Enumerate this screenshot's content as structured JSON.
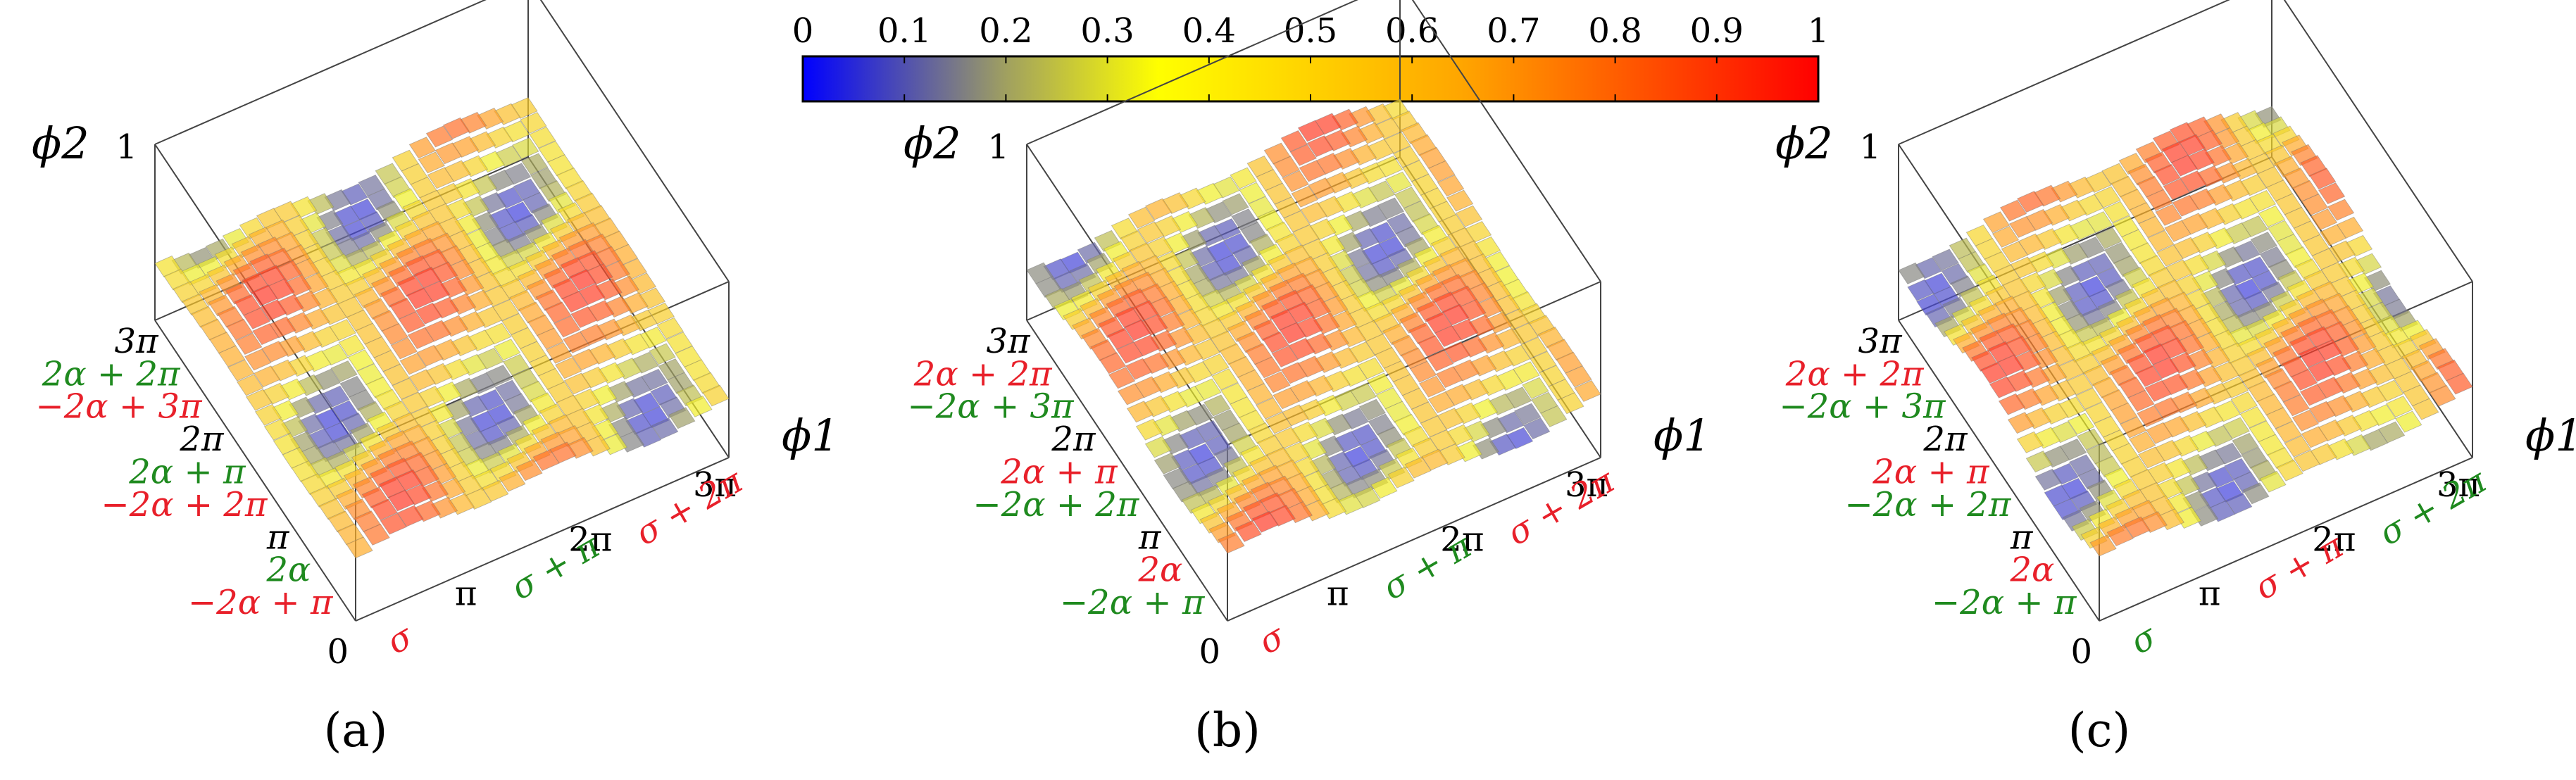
{
  "colors": {
    "green": "#1f8a1f",
    "red": "#e8202a",
    "black": "#000000",
    "colormap": [
      "#0000ff",
      "#ffff00",
      "#ffa500",
      "#ff0000"
    ]
  },
  "chart_data": {
    "type": "surface",
    "colorbar": {
      "range": [
        0,
        1
      ],
      "tick_labels": [
        "0",
        "0.1",
        "0.2",
        "0.3",
        "0.4",
        "0.5",
        "0.6",
        "0.7",
        "0.8",
        "0.9",
        "1"
      ]
    },
    "panels": [
      {
        "label": "(a)",
        "phi1_axis": "ϕ1",
        "phi2_axis": "ϕ2",
        "z_tick": "1",
        "z_origin_tick": "0",
        "phi1_ticks": [
          "π",
          "2π",
          "3π"
        ],
        "phi1_marks": [
          {
            "text": "σ",
            "color": "red"
          },
          {
            "text": "σ + π",
            "color": "green"
          },
          {
            "text": "σ + 2π",
            "color": "red"
          }
        ],
        "phi2_ticks": [
          {
            "text": "3π",
            "color": "black"
          },
          {
            "text": "2α + 2π",
            "color": "green"
          },
          {
            "text": "−2α + 3π",
            "color": "red"
          },
          {
            "text": "2π",
            "color": "black"
          },
          {
            "text": "2α + π",
            "color": "green"
          },
          {
            "text": "−2α + 2π",
            "color": "red"
          },
          {
            "text": "π",
            "color": "black"
          },
          {
            "text": "2α",
            "color": "green"
          },
          {
            "text": "−2α + π",
            "color": "red"
          }
        ]
      },
      {
        "label": "(b)",
        "phi1_axis": "ϕ1",
        "phi2_axis": "ϕ2",
        "z_tick": "1",
        "z_origin_tick": "0",
        "phi1_ticks": [
          "π",
          "2π",
          "3π"
        ],
        "phi1_marks": [
          {
            "text": "σ",
            "color": "red"
          },
          {
            "text": "σ + π",
            "color": "green"
          },
          {
            "text": "σ + 2π",
            "color": "red"
          }
        ],
        "phi2_ticks": [
          {
            "text": "3π",
            "color": "black"
          },
          {
            "text": "2α + 2π",
            "color": "red"
          },
          {
            "text": "−2α + 3π",
            "color": "green"
          },
          {
            "text": "2π",
            "color": "black"
          },
          {
            "text": "2α + π",
            "color": "red"
          },
          {
            "text": "−2α + 2π",
            "color": "green"
          },
          {
            "text": "π",
            "color": "black"
          },
          {
            "text": "2α",
            "color": "red"
          },
          {
            "text": "−2α + π",
            "color": "green"
          }
        ]
      },
      {
        "label": "(c)",
        "phi1_axis": "ϕ1",
        "phi2_axis": "ϕ2",
        "z_tick": "1",
        "z_origin_tick": "0",
        "phi1_ticks": [
          "π",
          "2π",
          "3π"
        ],
        "phi1_marks": [
          {
            "text": "σ",
            "color": "green"
          },
          {
            "text": "σ + π",
            "color": "red"
          },
          {
            "text": "σ + 2π",
            "color": "green"
          }
        ],
        "phi2_ticks": [
          {
            "text": "3π",
            "color": "black"
          },
          {
            "text": "2α + 2π",
            "color": "red"
          },
          {
            "text": "−2α + 3π",
            "color": "green"
          },
          {
            "text": "2π",
            "color": "black"
          },
          {
            "text": "2α + π",
            "color": "red"
          },
          {
            "text": "−2α + 2π",
            "color": "green"
          },
          {
            "text": "π",
            "color": "black"
          },
          {
            "text": "2α",
            "color": "red"
          },
          {
            "text": "−2α + π",
            "color": "green"
          }
        ]
      }
    ]
  }
}
